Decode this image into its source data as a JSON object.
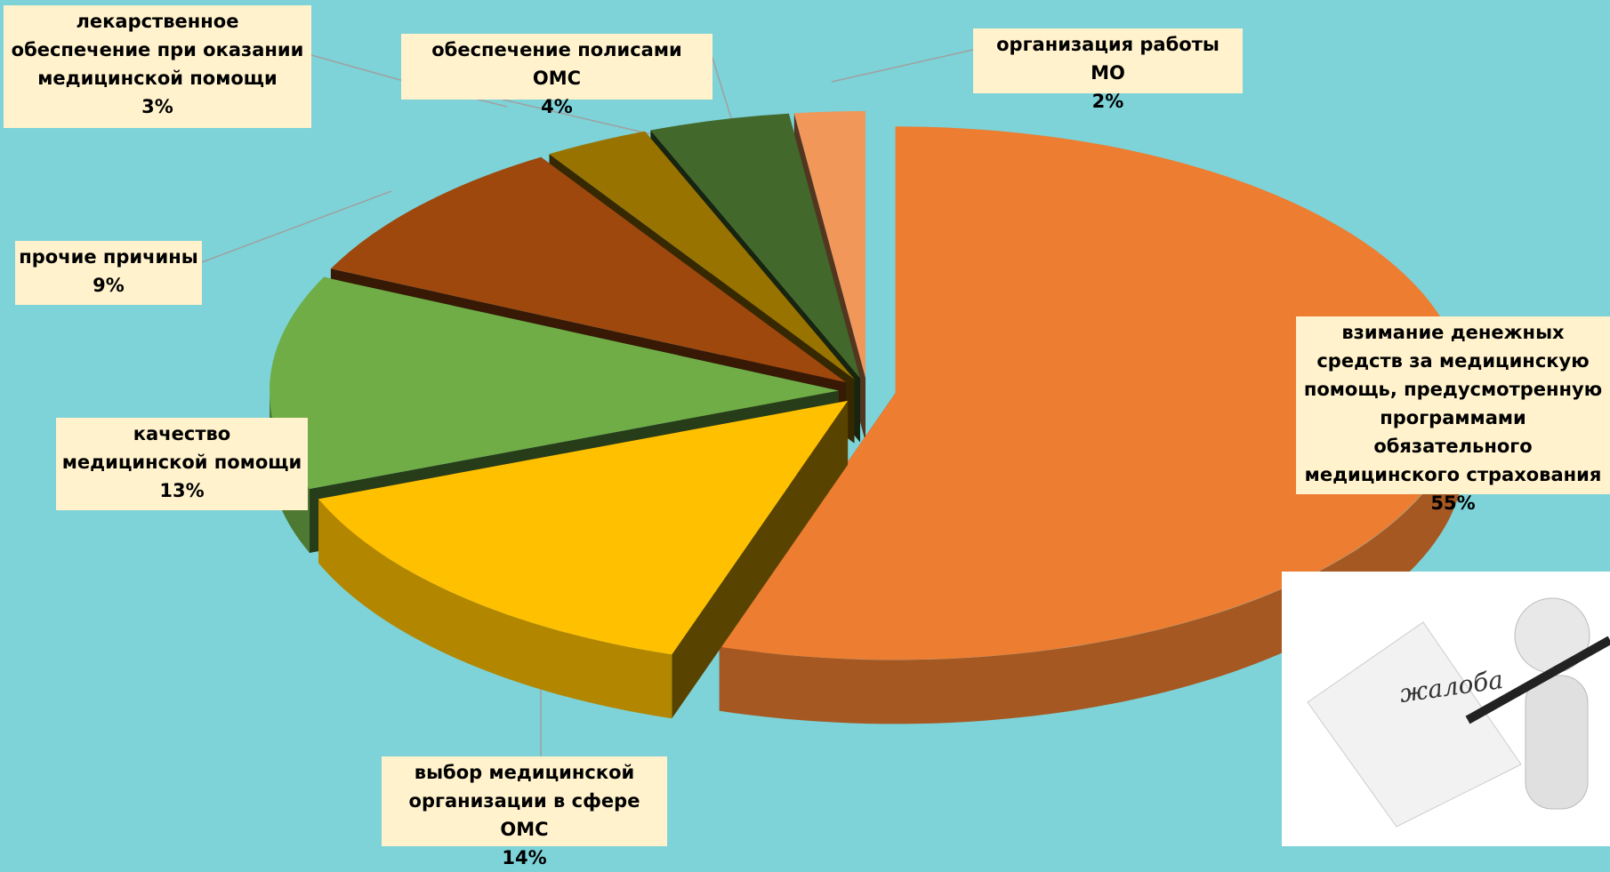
{
  "chart_data": {
    "type": "pie3d",
    "categories": [
      "взимание денежных средств за медицинскую помощь, предусмотренную программами обязательного медицинского страхования",
      "выбор медицинской организации в сфере ОМС",
      "качество медицинской помощи",
      "прочие причины",
      "лекарственное обеспечение при оказании медицинской помощи",
      "обеспечение полисами ОМС",
      "организация работы МО"
    ],
    "values": [
      55,
      14,
      13,
      9,
      3,
      4,
      2
    ],
    "value_labels": [
      "55%",
      "14%",
      "13%",
      "9%",
      "3%",
      "4%",
      "2%"
    ],
    "colors": [
      "#ed7d31",
      "#ffc000",
      "#70ad47",
      "#9e480e",
      "#997300",
      "#43682b",
      "#f1975a"
    ]
  },
  "image_text": "жалоба"
}
